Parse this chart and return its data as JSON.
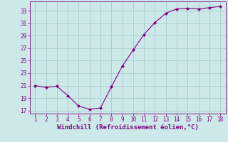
{
  "x": [
    1,
    2,
    3,
    4,
    5,
    6,
    7,
    8,
    9,
    10,
    11,
    12,
    13,
    14,
    15,
    16,
    17,
    18
  ],
  "y": [
    21.0,
    20.7,
    20.9,
    19.4,
    17.7,
    17.2,
    17.4,
    20.8,
    24.1,
    26.7,
    29.2,
    31.1,
    32.6,
    33.3,
    33.4,
    33.3,
    33.5,
    33.7
  ],
  "line_color": "#800080",
  "marker": "D",
  "marker_size": 2.0,
  "bg_color": "#cce8e8",
  "grid_color": "#aacccc",
  "xlabel": "Windchill (Refroidissement éolien,°C)",
  "xlabel_color": "#800080",
  "tick_color": "#800080",
  "ylim": [
    16.5,
    34.5
  ],
  "xlim": [
    0.5,
    18.5
  ],
  "yticks": [
    17,
    19,
    21,
    23,
    25,
    27,
    29,
    31,
    33
  ],
  "xticks": [
    1,
    2,
    3,
    4,
    5,
    6,
    7,
    8,
    9,
    10,
    11,
    12,
    13,
    14,
    15,
    16,
    17,
    18
  ],
  "xlabel_fontsize": 6.5,
  "tick_fontsize": 5.5,
  "linewidth": 0.8
}
